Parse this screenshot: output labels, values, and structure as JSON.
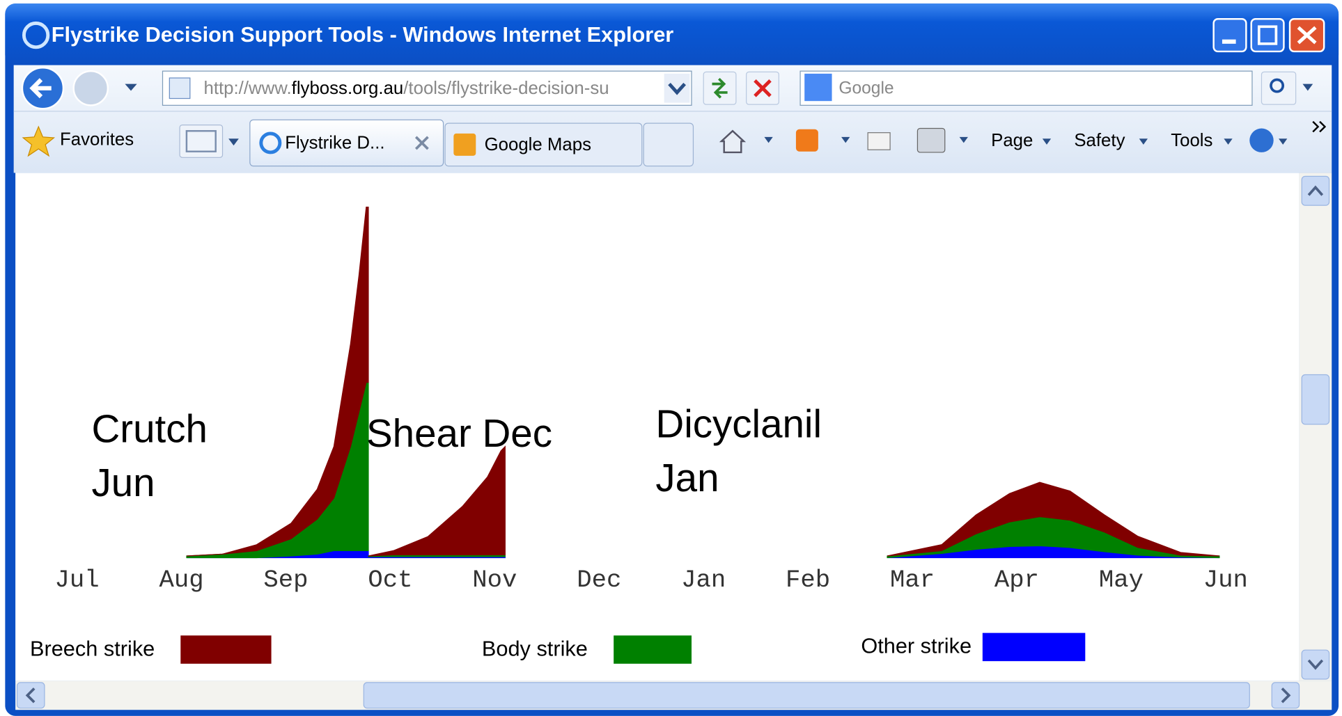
{
  "browser": {
    "title": "Flystrike Decision Support Tools - Windows Internet Explorer",
    "url": [
      "http://www.",
      "flyboss.org.au",
      "/tools/flystrike-decision-su"
    ],
    "search": "Google",
    "favorites": "Favorites",
    "tabs": [
      "Flystrike D...",
      "Google Maps"
    ],
    "menus": [
      "Page",
      "Safety",
      "Tools"
    ]
  },
  "chart_data": {
    "type": "stacked_area",
    "annotations": [
      [
        "Crutch",
        "Jun"
      ],
      [
        "Shear Dec"
      ],
      [
        "Dicyclanil",
        "Jan"
      ]
    ],
    "xlim": [
      0,
      11
    ],
    "ylim": [
      0,
      100
    ],
    "xticks": [
      {
        "value": 0,
        "label": "Jul"
      },
      {
        "value": 1,
        "label": "Aug"
      },
      {
        "value": 2,
        "label": "Sep"
      },
      {
        "value": 3,
        "label": "Oct"
      },
      {
        "value": 4,
        "label": "Nov"
      },
      {
        "value": 5,
        "label": "Dec"
      },
      {
        "value": 6,
        "label": "Jan"
      },
      {
        "value": 7,
        "label": "Feb"
      },
      {
        "value": 8,
        "label": "Mar"
      },
      {
        "value": 9,
        "label": "Apr"
      },
      {
        "value": 10,
        "label": "May"
      },
      {
        "value": 11,
        "label": "Jun"
      }
    ],
    "x": [
      1.05,
      1.39,
      1.72,
      2.05,
      2.3,
      2.46,
      2.62,
      2.7,
      2.77,
      2.79,
      null,
      2.79,
      3.03,
      3.36,
      3.69,
      3.93,
      4.06,
      4.1,
      null,
      7.76,
      8.28,
      8.61,
      8.93,
      9.22,
      9.51,
      9.84,
      10.16,
      10.57,
      10.94
    ],
    "series": [
      {
        "name": "Other strike",
        "color": "#0000ff",
        "values": [
          0,
          0,
          0,
          0.5,
          1,
          2,
          2,
          2,
          2,
          2,
          null,
          0.3,
          0.3,
          0.3,
          0.3,
          0.3,
          0.3,
          0.3,
          null,
          0,
          1.2,
          2.4,
          3.2,
          3.4,
          2.9,
          1.7,
          0.7,
          0.2,
          0
        ]
      },
      {
        "name": "Body strike",
        "color": "#008000",
        "values": [
          0.5,
          1,
          2,
          4.9,
          10,
          15,
          29.7,
          39.5,
          48,
          48,
          null,
          0.2,
          0.5,
          0.5,
          0.5,
          0.5,
          0.5,
          0.5,
          null,
          0.5,
          0.8,
          4.4,
          7,
          8.3,
          7.8,
          5.6,
          2.2,
          0.5,
          0.5
        ]
      },
      {
        "name": "Breech strike",
        "color": "#800000",
        "values": [
          0,
          0,
          1.7,
          4.4,
          8.5,
          14.7,
          29.3,
          39,
          50,
          50,
          null,
          0,
          1.2,
          5.2,
          13.8,
          22.2,
          29.7,
          30.9,
          null,
          0,
          1.7,
          5.4,
          8.1,
          9.8,
          8.3,
          4.9,
          3.2,
          0.8,
          0
        ]
      }
    ],
    "legend_order": [
      2,
      1,
      0
    ]
  }
}
